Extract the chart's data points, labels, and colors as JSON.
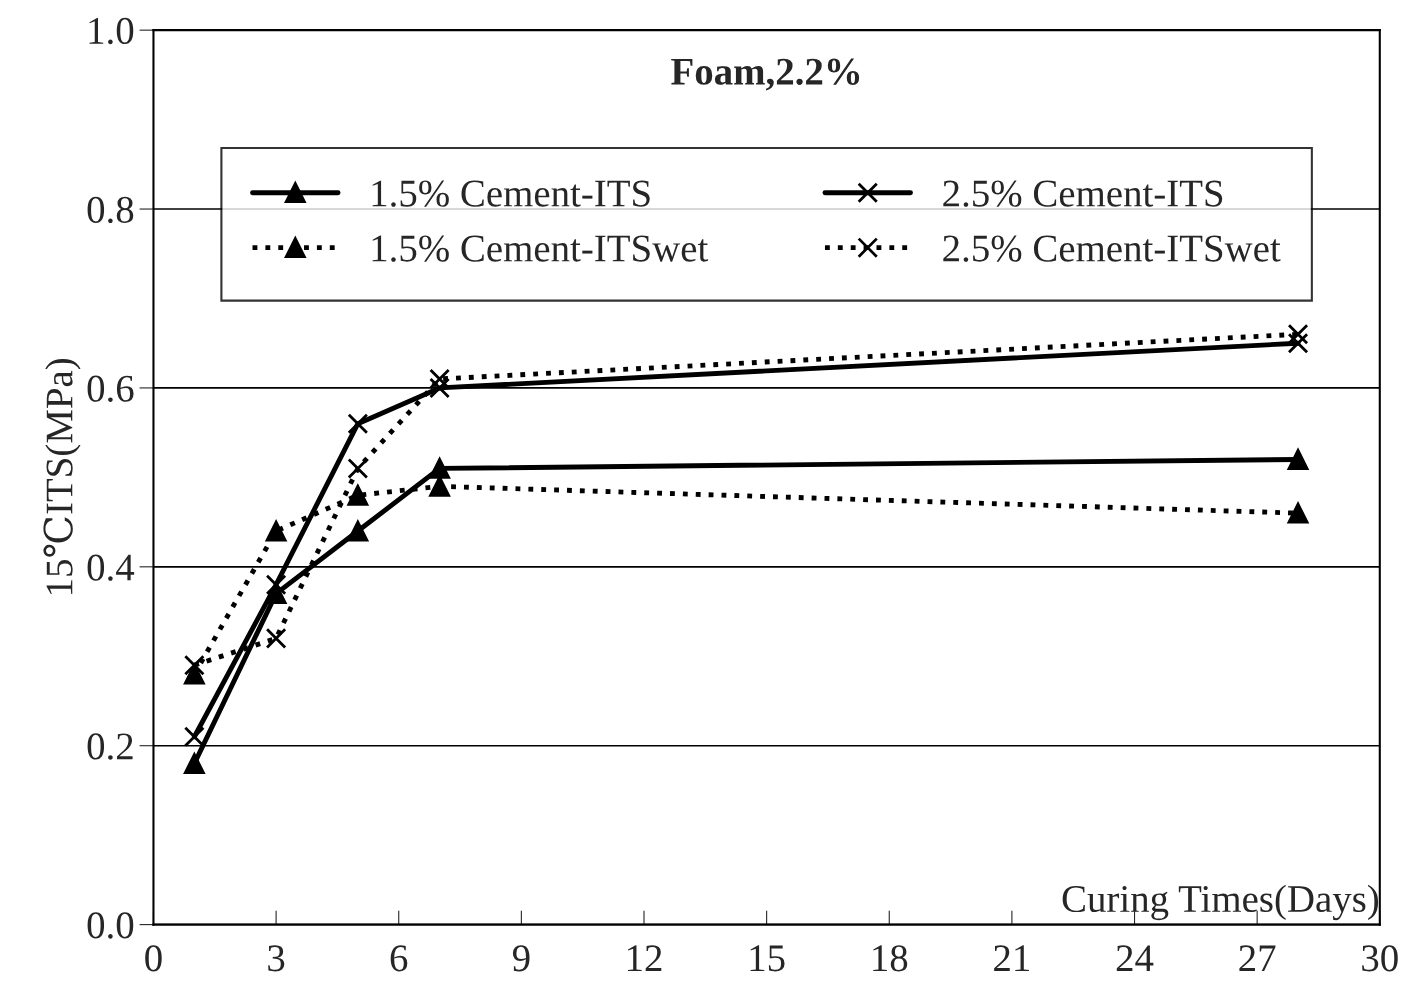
{
  "chart_data": {
    "type": "line",
    "title": "Foam,2.2%",
    "xlabel": "Curing Times(Days)",
    "ylabel": "15℃ITS(MPa)",
    "x": [
      1,
      3,
      5,
      7,
      28
    ],
    "xlim": [
      0,
      30
    ],
    "xticks": [
      0,
      3,
      6,
      9,
      12,
      15,
      18,
      21,
      24,
      27,
      30
    ],
    "ylim": [
      0.0,
      1.0
    ],
    "yticks": [
      {
        "value": 0.0,
        "label": "0.0"
      },
      {
        "value": 0.2,
        "label": "0.2"
      },
      {
        "value": 0.4,
        "label": "0.4"
      },
      {
        "value": 0.6,
        "label": "0.6"
      },
      {
        "value": 0.8,
        "label": "0.8"
      },
      {
        "value": 1.0,
        "label": "1.0"
      }
    ],
    "grid": "y",
    "legend": "top",
    "series": [
      {
        "name": "1.5% Cement-ITS",
        "color": "#000000",
        "marker": "triangle",
        "line_style": "solid",
        "values": [
          0.18,
          0.37,
          0.44,
          0.51,
          0.52
        ]
      },
      {
        "name": "2.5% Cement-ITS",
        "color": "#000000",
        "marker": "cross",
        "line_style": "solid",
        "values": [
          0.21,
          0.38,
          0.56,
          0.6,
          0.65
        ]
      },
      {
        "name": "1.5% Cement-ITSwet",
        "color": "#000000",
        "marker": "triangle",
        "line_style": "dotted",
        "values": [
          0.28,
          0.44,
          0.48,
          0.49,
          0.46
        ]
      },
      {
        "name": "2.5% Cement-ITSwet",
        "color": "#000000",
        "marker": "cross",
        "line_style": "dotted",
        "values": [
          0.29,
          0.32,
          0.51,
          0.61,
          0.66
        ]
      }
    ]
  }
}
